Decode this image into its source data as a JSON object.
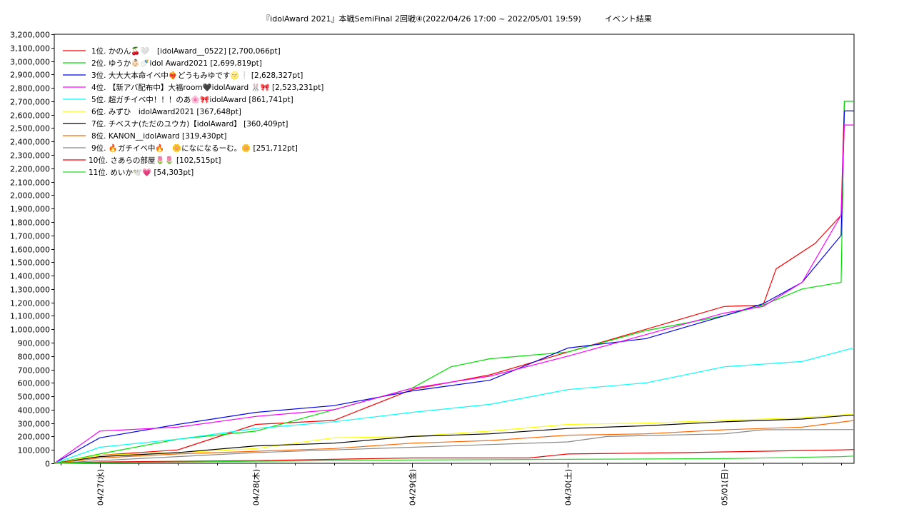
{
  "chart_data": {
    "type": "line",
    "title": "『idolAward 2021』本戦SemiFinal 2回戦④(2022/04/26 17:00 ~ 2022/05/01 19:59)　　　イベント結果",
    "xlabel": "",
    "ylabel": "",
    "x_domain": [
      "2022-04-26 17:00",
      "2022-05-01 19:59"
    ],
    "x_ticks": [
      {
        "date": "2022-04-27 00:00",
        "label": "04/27(水)"
      },
      {
        "date": "2022-04-28 00:00",
        "label": "04/28(木)"
      },
      {
        "date": "2022-04-29 00:00",
        "label": "04/29(金)"
      },
      {
        "date": "2022-04-30 00:00",
        "label": "04/30(土)"
      },
      {
        "date": "2022-05-01 00:00",
        "label": "05/01(日)"
      }
    ],
    "ylim": [
      0,
      3200000
    ],
    "y_ticks": [
      "0",
      "100,000",
      "200,000",
      "300,000",
      "400,000",
      "500,000",
      "600,000",
      "700,000",
      "800,000",
      "900,000",
      "1,000,000",
      "1,100,000",
      "1,200,000",
      "1,300,000",
      "1,400,000",
      "1,500,000",
      "1,600,000",
      "1,700,000",
      "1,800,000",
      "1,900,000",
      "2,000,000",
      "2,100,000",
      "2,200,000",
      "2,300,000",
      "2,400,000",
      "2,500,000",
      "2,600,000",
      "2,700,000",
      "2,800,000",
      "2,900,000",
      "3,000,000",
      "3,100,000",
      "3,200,000"
    ],
    "grid": true,
    "legend_position": "top-left",
    "series": [
      {
        "name": "1位. かのん🍒🤍　[idolAward__0522] [2,700,066pt]",
        "color": "#ff0000",
        "points": [
          [
            "2022-04-26 17:00",
            0
          ],
          [
            "2022-04-27 00:00",
            60000
          ],
          [
            "2022-04-27 12:00",
            100000
          ],
          [
            "2022-04-28 00:00",
            290000
          ],
          [
            "2022-04-28 12:00",
            320000
          ],
          [
            "2022-04-29 00:00",
            550000
          ],
          [
            "2022-04-29 12:00",
            660000
          ],
          [
            "2022-04-30 00:00",
            830000
          ],
          [
            "2022-04-30 12:00",
            1000000
          ],
          [
            "2022-05-01 00:00",
            1170000
          ],
          [
            "2022-05-01 06:00",
            1180000
          ],
          [
            "2022-05-01 08:00",
            1450000
          ],
          [
            "2022-05-01 14:00",
            1640000
          ],
          [
            "2022-05-01 18:00",
            1850000
          ],
          [
            "2022-05-01 18:30",
            2700066
          ],
          [
            "2022-05-01 19:59",
            2700066
          ]
        ]
      },
      {
        "name": "2位. ゆうか👶🏻🍼idol Award2021 [2,699,819pt]",
        "color": "#00e000",
        "points": [
          [
            "2022-04-26 17:00",
            0
          ],
          [
            "2022-04-27 00:00",
            70000
          ],
          [
            "2022-04-27 12:00",
            180000
          ],
          [
            "2022-04-28 00:00",
            240000
          ],
          [
            "2022-04-28 12:00",
            400000
          ],
          [
            "2022-04-29 00:00",
            560000
          ],
          [
            "2022-04-29 06:00",
            720000
          ],
          [
            "2022-04-29 12:00",
            780000
          ],
          [
            "2022-04-30 00:00",
            830000
          ],
          [
            "2022-04-30 12:00",
            990000
          ],
          [
            "2022-05-01 00:00",
            1100000
          ],
          [
            "2022-05-01 06:00",
            1180000
          ],
          [
            "2022-05-01 12:00",
            1300000
          ],
          [
            "2022-05-01 18:00",
            1350000
          ],
          [
            "2022-05-01 18:30",
            2699819
          ],
          [
            "2022-05-01 19:59",
            2699819
          ]
        ]
      },
      {
        "name": "3位. 大大大本命イベ中❤️‍🔥どうもみゆです🌝❕ [2,628,327pt]",
        "color": "#0000ee",
        "points": [
          [
            "2022-04-26 17:00",
            0
          ],
          [
            "2022-04-27 00:00",
            190000
          ],
          [
            "2022-04-27 12:00",
            290000
          ],
          [
            "2022-04-28 00:00",
            380000
          ],
          [
            "2022-04-28 12:00",
            430000
          ],
          [
            "2022-04-29 00:00",
            540000
          ],
          [
            "2022-04-29 12:00",
            620000
          ],
          [
            "2022-04-30 00:00",
            860000
          ],
          [
            "2022-04-30 12:00",
            930000
          ],
          [
            "2022-05-01 00:00",
            1100000
          ],
          [
            "2022-05-01 06:00",
            1190000
          ],
          [
            "2022-05-01 12:00",
            1350000
          ],
          [
            "2022-05-01 18:00",
            1700000
          ],
          [
            "2022-05-01 18:30",
            2628327
          ],
          [
            "2022-05-01 19:59",
            2628327
          ]
        ]
      },
      {
        "name": "4位. 【新アバ配布中】大福room🖤idolAward 🐰🎀 [2,523,231pt]",
        "color": "#ff00ff",
        "points": [
          [
            "2022-04-26 17:00",
            0
          ],
          [
            "2022-04-27 00:00",
            240000
          ],
          [
            "2022-04-27 12:00",
            270000
          ],
          [
            "2022-04-28 00:00",
            350000
          ],
          [
            "2022-04-28 12:00",
            400000
          ],
          [
            "2022-04-29 00:00",
            560000
          ],
          [
            "2022-04-29 12:00",
            650000
          ],
          [
            "2022-04-30 00:00",
            800000
          ],
          [
            "2022-04-30 12:00",
            960000
          ],
          [
            "2022-05-01 00:00",
            1120000
          ],
          [
            "2022-05-01 06:00",
            1170000
          ],
          [
            "2022-05-01 12:00",
            1350000
          ],
          [
            "2022-05-01 18:00",
            1850000
          ],
          [
            "2022-05-01 18:30",
            2523231
          ],
          [
            "2022-05-01 19:59",
            2523231
          ]
        ]
      },
      {
        "name": "5位. 超ガチイベ中！！！のあ🌸🎀idolAward [861,741pt]",
        "color": "#00ffff",
        "points": [
          [
            "2022-04-26 17:00",
            0
          ],
          [
            "2022-04-27 00:00",
            120000
          ],
          [
            "2022-04-27 12:00",
            180000
          ],
          [
            "2022-04-28 00:00",
            260000
          ],
          [
            "2022-04-28 12:00",
            310000
          ],
          [
            "2022-04-29 00:00",
            380000
          ],
          [
            "2022-04-29 12:00",
            440000
          ],
          [
            "2022-04-30 00:00",
            550000
          ],
          [
            "2022-04-30 12:00",
            600000
          ],
          [
            "2022-05-01 00:00",
            720000
          ],
          [
            "2022-05-01 12:00",
            760000
          ],
          [
            "2022-05-01 19:59",
            861741
          ]
        ]
      },
      {
        "name": "6位. みずひ　idolAward2021 [367,648pt]",
        "color": "#ffff00",
        "points": [
          [
            "2022-04-26 17:00",
            0
          ],
          [
            "2022-04-27 00:00",
            60000
          ],
          [
            "2022-04-27 12:00",
            80000
          ],
          [
            "2022-04-28 00:00",
            110000
          ],
          [
            "2022-04-28 12:00",
            190000
          ],
          [
            "2022-04-29 00:00",
            200000
          ],
          [
            "2022-04-29 12:00",
            240000
          ],
          [
            "2022-04-30 00:00",
            290000
          ],
          [
            "2022-04-30 12:00",
            300000
          ],
          [
            "2022-05-01 00:00",
            320000
          ],
          [
            "2022-05-01 12:00",
            340000
          ],
          [
            "2022-05-01 19:59",
            367648
          ]
        ]
      },
      {
        "name": "7位. チベスナ(ただのユウカ)【idolAward】 [360,409pt]",
        "color": "#000000",
        "points": [
          [
            "2022-04-26 17:00",
            0
          ],
          [
            "2022-04-27 00:00",
            50000
          ],
          [
            "2022-04-27 12:00",
            80000
          ],
          [
            "2022-04-28 00:00",
            130000
          ],
          [
            "2022-04-28 12:00",
            150000
          ],
          [
            "2022-04-29 00:00",
            200000
          ],
          [
            "2022-04-29 12:00",
            220000
          ],
          [
            "2022-04-30 00:00",
            260000
          ],
          [
            "2022-04-30 12:00",
            280000
          ],
          [
            "2022-05-01 00:00",
            310000
          ],
          [
            "2022-05-01 12:00",
            330000
          ],
          [
            "2022-05-01 19:59",
            360409
          ]
        ]
      },
      {
        "name": "8位. KANON__idolAward [319,430pt]",
        "color": "#ff6600",
        "points": [
          [
            "2022-04-26 17:00",
            0
          ],
          [
            "2022-04-27 00:00",
            40000
          ],
          [
            "2022-04-27 12:00",
            70000
          ],
          [
            "2022-04-28 00:00",
            90000
          ],
          [
            "2022-04-28 12:00",
            110000
          ],
          [
            "2022-04-29 00:00",
            150000
          ],
          [
            "2022-04-29 12:00",
            170000
          ],
          [
            "2022-04-30 00:00",
            210000
          ],
          [
            "2022-04-30 12:00",
            220000
          ],
          [
            "2022-05-01 00:00",
            250000
          ],
          [
            "2022-05-01 12:00",
            270000
          ],
          [
            "2022-05-01 19:59",
            319430
          ]
        ]
      },
      {
        "name": "9位. 🔥ガチイベ中🔥　🌼になになるーむ。🌼 [251,712pt]",
        "color": "#888888",
        "points": [
          [
            "2022-04-26 17:00",
            0
          ],
          [
            "2022-04-27 00:00",
            20000
          ],
          [
            "2022-04-27 12:00",
            50000
          ],
          [
            "2022-04-28 00:00",
            80000
          ],
          [
            "2022-04-28 12:00",
            100000
          ],
          [
            "2022-04-29 00:00",
            120000
          ],
          [
            "2022-04-29 12:00",
            140000
          ],
          [
            "2022-04-30 00:00",
            160000
          ],
          [
            "2022-04-30 06:00",
            200000
          ],
          [
            "2022-05-01 00:00",
            220000
          ],
          [
            "2022-05-01 06:00",
            250000
          ],
          [
            "2022-05-01 19:59",
            251712
          ]
        ]
      },
      {
        "name": "10位. さあらの部屋🌷🌷 [102,515pt]",
        "color": "#ee0000",
        "points": [
          [
            "2022-04-26 17:00",
            0
          ],
          [
            "2022-04-27 00:00",
            10000
          ],
          [
            "2022-04-28 00:00",
            20000
          ],
          [
            "2022-04-29 00:00",
            40000
          ],
          [
            "2022-04-29 18:00",
            40000
          ],
          [
            "2022-04-30 00:00",
            70000
          ],
          [
            "2022-04-30 18:00",
            80000
          ],
          [
            "2022-05-01 00:00",
            85000
          ],
          [
            "2022-05-01 18:00",
            100000
          ],
          [
            "2022-05-01 19:59",
            102515
          ]
        ]
      },
      {
        "name": "11位. めいか🕊️💗 [54,303pt]",
        "color": "#22dd22",
        "points": [
          [
            "2022-04-26 17:00",
            0
          ],
          [
            "2022-04-27 00:00",
            5000
          ],
          [
            "2022-04-28 00:00",
            15000
          ],
          [
            "2022-04-29 00:00",
            25000
          ],
          [
            "2022-04-30 00:00",
            30000
          ],
          [
            "2022-05-01 00:00",
            35000
          ],
          [
            "2022-05-01 18:00",
            50000
          ],
          [
            "2022-05-01 19:59",
            54303
          ]
        ]
      }
    ]
  }
}
